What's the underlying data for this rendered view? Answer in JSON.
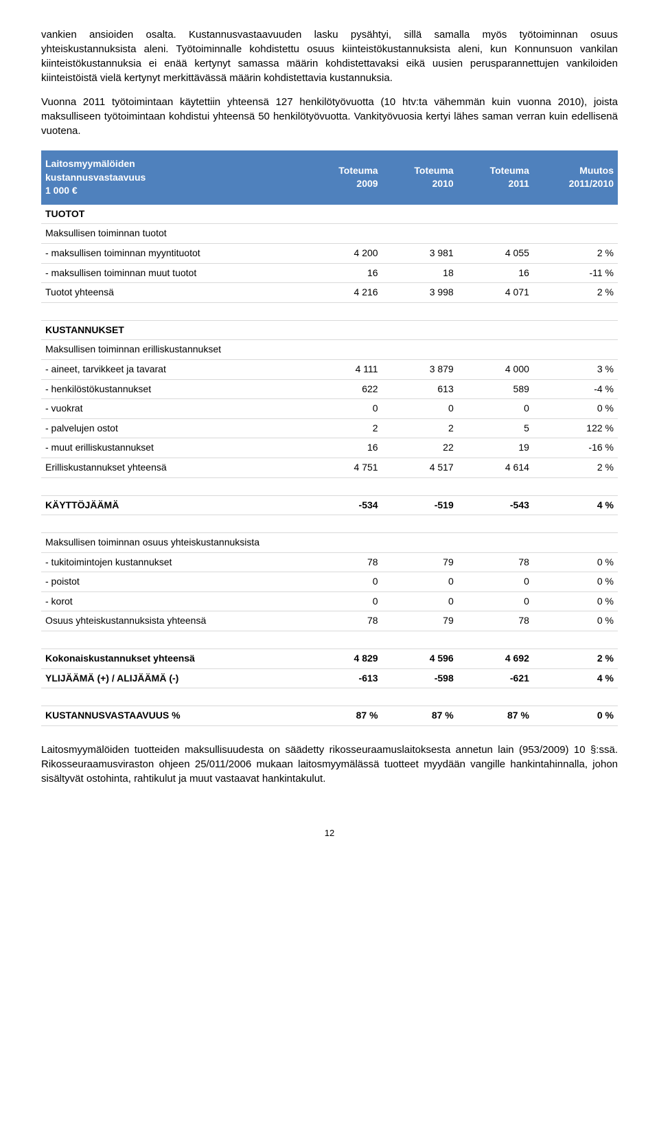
{
  "paragraphs": {
    "p1": "vankien ansioiden osalta. Kustannusvastaavuuden lasku pysähtyi, sillä samalla myös työtoiminnan osuus yhteiskustannuksista aleni. Työtoiminnalle kohdistettu osuus kiinteistökustannuksista aleni, kun Konnunsuon vankilan kiinteistökustannuksia ei enää kertynyt samassa määrin kohdistettavaksi eikä uusien perusparannettujen vankiloiden kiinteistöistä vielä kertynyt merkittävässä määrin kohdistettavia kustannuksia.",
    "p2": "Vuonna 2011 työtoimintaan käytettiin yhteensä 127 henkilötyövuotta (10 htv:ta vähemmän kuin vuonna 2010), joista maksulliseen työtoimintaan kohdistui yhteensä 50 henkilötyövuotta. Vankityövuosia kertyi lähes saman verran kuin edellisenä vuotena.",
    "p3": "Laitosmyymälöiden tuotteiden maksullisuudesta on säädetty rikosseuraamuslaitoksesta annetun lain (953/2009) 10 §:ssä. Rikosseuraamusviraston ohjeen 25/011/2006 mukaan laitosmyymälässä tuotteet myydään vangille hankintahinnalla, johon sisältyvät ostohinta, rahtikulut ja muut vastaavat hankintakulut."
  },
  "table": {
    "header": {
      "title_line1": "Laitosmyymälöiden",
      "title_line2": "kustannusvastaavuus",
      "title_line3": "1 000 €",
      "col2_line1": "Toteuma",
      "col2_line2": "2009",
      "col3_line1": "Toteuma",
      "col3_line2": "2010",
      "col4_line1": "Toteuma",
      "col4_line2": "2011",
      "col5_line1": "Muutos",
      "col5_line2": "2011/2010"
    },
    "tuotot_label": "TUOTOT",
    "maksullisen_tuotot_label": "Maksullisen toiminnan tuotot",
    "myyntituotot": {
      "label": "- maksullisen toiminnan myyntituotot",
      "c2009": "4 200",
      "c2010": "3 981",
      "c2011": "4 055",
      "muutos": "2 %"
    },
    "muut_tuotot": {
      "label": "- maksullisen toiminnan muut tuotot",
      "c2009": "16",
      "c2010": "18",
      "c2011": "16",
      "muutos": "-11 %"
    },
    "tuotot_yht": {
      "label": "Tuotot yhteensä",
      "c2009": "4 216",
      "c2010": "3 998",
      "c2011": "4 071",
      "muutos": "2 %"
    },
    "kustannukset_label": "KUSTANNUKSET",
    "erilliskust_label": "Maksullisen toiminnan erilliskustannukset",
    "aineet": {
      "label": "- aineet, tarvikkeet ja tavarat",
      "c2009": "4 111",
      "c2010": "3 879",
      "c2011": "4 000",
      "muutos": "3 %"
    },
    "henkilosto": {
      "label": "- henkilöstökustannukset",
      "c2009": "622",
      "c2010": "613",
      "c2011": "589",
      "muutos": "-4 %"
    },
    "vuokrat": {
      "label": "- vuokrat",
      "c2009": "0",
      "c2010": "0",
      "c2011": "0",
      "muutos": "0 %"
    },
    "palvelut": {
      "label": "- palvelujen ostot",
      "c2009": "2",
      "c2010": "2",
      "c2011": "5",
      "muutos": "122 %"
    },
    "muut_erillis": {
      "label": "- muut erilliskustannukset",
      "c2009": "16",
      "c2010": "22",
      "c2011": "19",
      "muutos": "-16 %"
    },
    "erillis_yht": {
      "label": "Erilliskustannukset yhteensä",
      "c2009": "4 751",
      "c2010": "4 517",
      "c2011": "4 614",
      "muutos": "2 %"
    },
    "kayttojaama": {
      "label": "KÄYTTÖJÄÄMÄ",
      "c2009": "-534",
      "c2010": "-519",
      "c2011": "-543",
      "muutos": "4 %"
    },
    "osuus_yhteis_label": "Maksullisen toiminnan osuus yhteiskustannuksista",
    "tukitoiminnot": {
      "label": "- tukitoimintojen kustannukset",
      "c2009": "78",
      "c2010": "79",
      "c2011": "78",
      "muutos": "0 %"
    },
    "poistot": {
      "label": "- poistot",
      "c2009": "0",
      "c2010": "0",
      "c2011": "0",
      "muutos": "0 %"
    },
    "korot": {
      "label": "- korot",
      "c2009": "0",
      "c2010": "0",
      "c2011": "0",
      "muutos": "0 %"
    },
    "osuus_yht": {
      "label": "Osuus yhteiskustannuksista yhteensä",
      "c2009": "78",
      "c2010": "79",
      "c2011": "78",
      "muutos": "0 %"
    },
    "kokonais": {
      "label": "Kokonaiskustannukset yhteensä",
      "c2009": "4 829",
      "c2010": "4 596",
      "c2011": "4 692",
      "muutos": "2 %"
    },
    "ylijaama": {
      "label": "YLIJÄÄMÄ (+) / ALIJÄÄMÄ (-)",
      "c2009": "-613",
      "c2010": "-598",
      "c2011": "-621",
      "muutos": "4 %"
    },
    "vastaavuus": {
      "label": "KUSTANNUSVASTAAVUUS %",
      "c2009": "87 %",
      "c2010": "87 %",
      "c2011": "87 %",
      "muutos": "0 %"
    }
  },
  "page_number": "12",
  "colors": {
    "header_bg": "#4f81bd",
    "header_text": "#ffffff",
    "border": "#d9d9d9"
  }
}
